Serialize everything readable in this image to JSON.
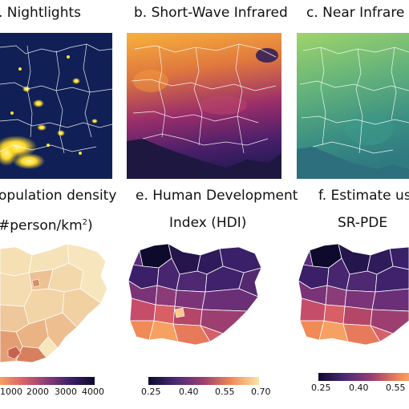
{
  "titles": {
    "a": ". Nightlights",
    "b": "b. Short-Wave Infrared",
    "c": "c. Near Infrare",
    "d1": "opulation density",
    "d2": "#person/km",
    "d2_sup": "2",
    "d2_end": ")",
    "e1": "e. Human Development",
    "e2": "Index (HDI)",
    "f1": "f. Estimate us",
    "f2": "SR-PDE"
  },
  "colorbars": {
    "d": {
      "ticks": [
        "1000",
        "2000",
        "3000",
        "4000"
      ]
    },
    "e": {
      "ticks": [
        "0.25",
        "0.40",
        "0.55",
        "0.70"
      ]
    },
    "f": {
      "ticks": [
        "0.25",
        "0.40",
        "0.55"
      ]
    }
  },
  "palettes": {
    "nightlights_bg": "#0d1a4a",
    "nightlights_light": "#ffe033",
    "swir_low": "#2a1b57",
    "swir_mid": "#b0366d",
    "swir_high": "#f7b13c",
    "nir_low": "#3a8f83",
    "nir_high": "#9fd46a",
    "magma_dark": "#0e0a2e",
    "magma_purple": "#4b2a77",
    "magma_red": "#c64d6a",
    "magma_orange": "#f08a56",
    "magma_light": "#fbe4a6",
    "boundary": "#ffffff"
  }
}
